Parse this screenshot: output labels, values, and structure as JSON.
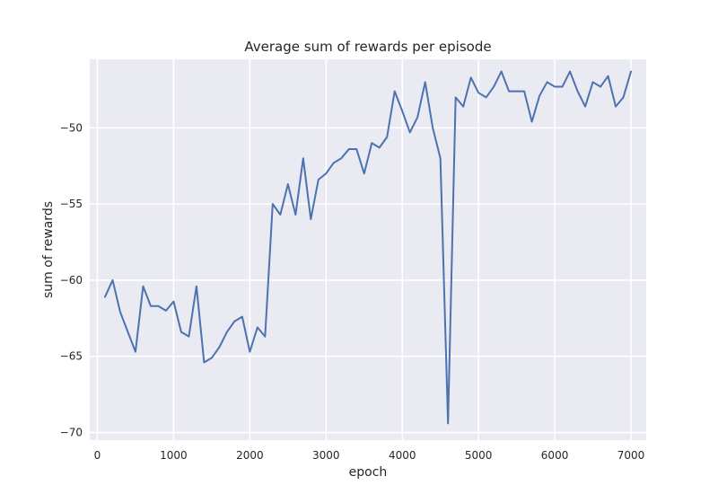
{
  "chart_data": {
    "type": "line",
    "title": "Average sum of rewards per episode",
    "xlabel": "epoch",
    "ylabel": "sum of rewards",
    "xlim": [
      -100,
      7200
    ],
    "ylim": [
      -70.5,
      -45.5
    ],
    "xticks": [
      0,
      1000,
      2000,
      3000,
      4000,
      5000,
      6000,
      7000
    ],
    "yticks": [
      -70,
      -65,
      -60,
      -55,
      -50
    ],
    "xtick_labels": [
      "0",
      "1000",
      "2000",
      "3000",
      "4000",
      "5000",
      "6000",
      "7000"
    ],
    "ytick_labels": [
      "−70",
      "−65",
      "−60",
      "−55",
      "−50"
    ],
    "grid": true,
    "style": "seaborn",
    "background": "#eaeaf2",
    "color": "#4c72b0",
    "series": [
      {
        "x": [
          100,
          200,
          300,
          400,
          500,
          600,
          700,
          800,
          900,
          1000,
          1100,
          1200,
          1300,
          1400,
          1500,
          1600,
          1700,
          1800,
          1900,
          2000,
          2100,
          2200,
          2300,
          2400,
          2500,
          2600,
          2700,
          2800,
          2900,
          3000,
          3100,
          3200,
          3300,
          3400,
          3500,
          3600,
          3700,
          3800,
          3900,
          4000,
          4100,
          4200,
          4300,
          4400,
          4500,
          4600,
          4700,
          4800,
          4900,
          5000,
          5100,
          5200,
          5300,
          5400,
          5500,
          5600,
          5700,
          5800,
          5900,
          6000,
          6100,
          6200,
          6300,
          6400,
          6500,
          6600,
          6700,
          6800,
          6900,
          7000
        ],
        "y": [
          -61.1,
          -60.0,
          -62.1,
          -63.4,
          -64.7,
          -60.4,
          -61.7,
          -61.7,
          -62.0,
          -61.4,
          -63.4,
          -63.7,
          -60.4,
          -65.4,
          -65.1,
          -64.4,
          -63.4,
          -62.7,
          -62.4,
          -64.7,
          -63.1,
          -63.7,
          -55.0,
          -55.7,
          -53.7,
          -55.7,
          -52.0,
          -56.0,
          -53.4,
          -53.0,
          -52.3,
          -52.0,
          -51.4,
          -51.4,
          -53.0,
          -51.0,
          -51.3,
          -50.6,
          -47.6,
          -48.9,
          -50.3,
          -49.3,
          -47.0,
          -50.0,
          -52.0,
          -69.4,
          -48.0,
          -48.6,
          -46.7,
          -47.7,
          -48.0,
          -47.3,
          -46.3,
          -47.6,
          -47.6,
          -47.6,
          -49.6,
          -47.9,
          -47.0,
          -47.3,
          -47.3,
          -46.3,
          -47.6,
          -48.6,
          -47.0,
          -47.3,
          -46.6,
          -48.6,
          -48.0,
          -46.3
        ]
      }
    ]
  }
}
